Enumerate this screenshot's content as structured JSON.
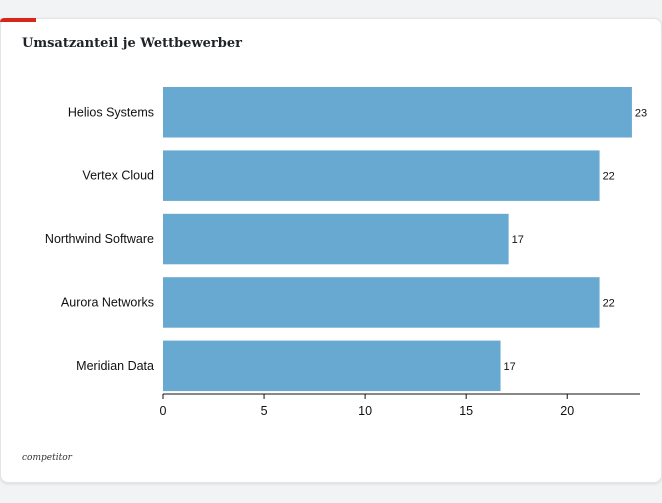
{
  "title": "Umsatzanteil je Wettbewerber",
  "footnote": "competitor",
  "colors": {
    "bar": "#67a9d0",
    "accent": "#d9261c",
    "axis": "#111111"
  },
  "chart_data": {
    "type": "bar",
    "orientation": "horizontal",
    "categories": [
      "Helios Systems",
      "Vertex Cloud",
      "Northwind Software",
      "Aurora Networks",
      "Meridian Data"
    ],
    "values": [
      23.2,
      21.6,
      17.1,
      21.6,
      16.7
    ],
    "data_labels": [
      "23",
      "22",
      "17",
      "22",
      "17"
    ],
    "xlim": [
      0,
      23.6
    ],
    "x_ticks": [
      0,
      5,
      10,
      15,
      20
    ],
    "grid": false,
    "legend": "none"
  }
}
